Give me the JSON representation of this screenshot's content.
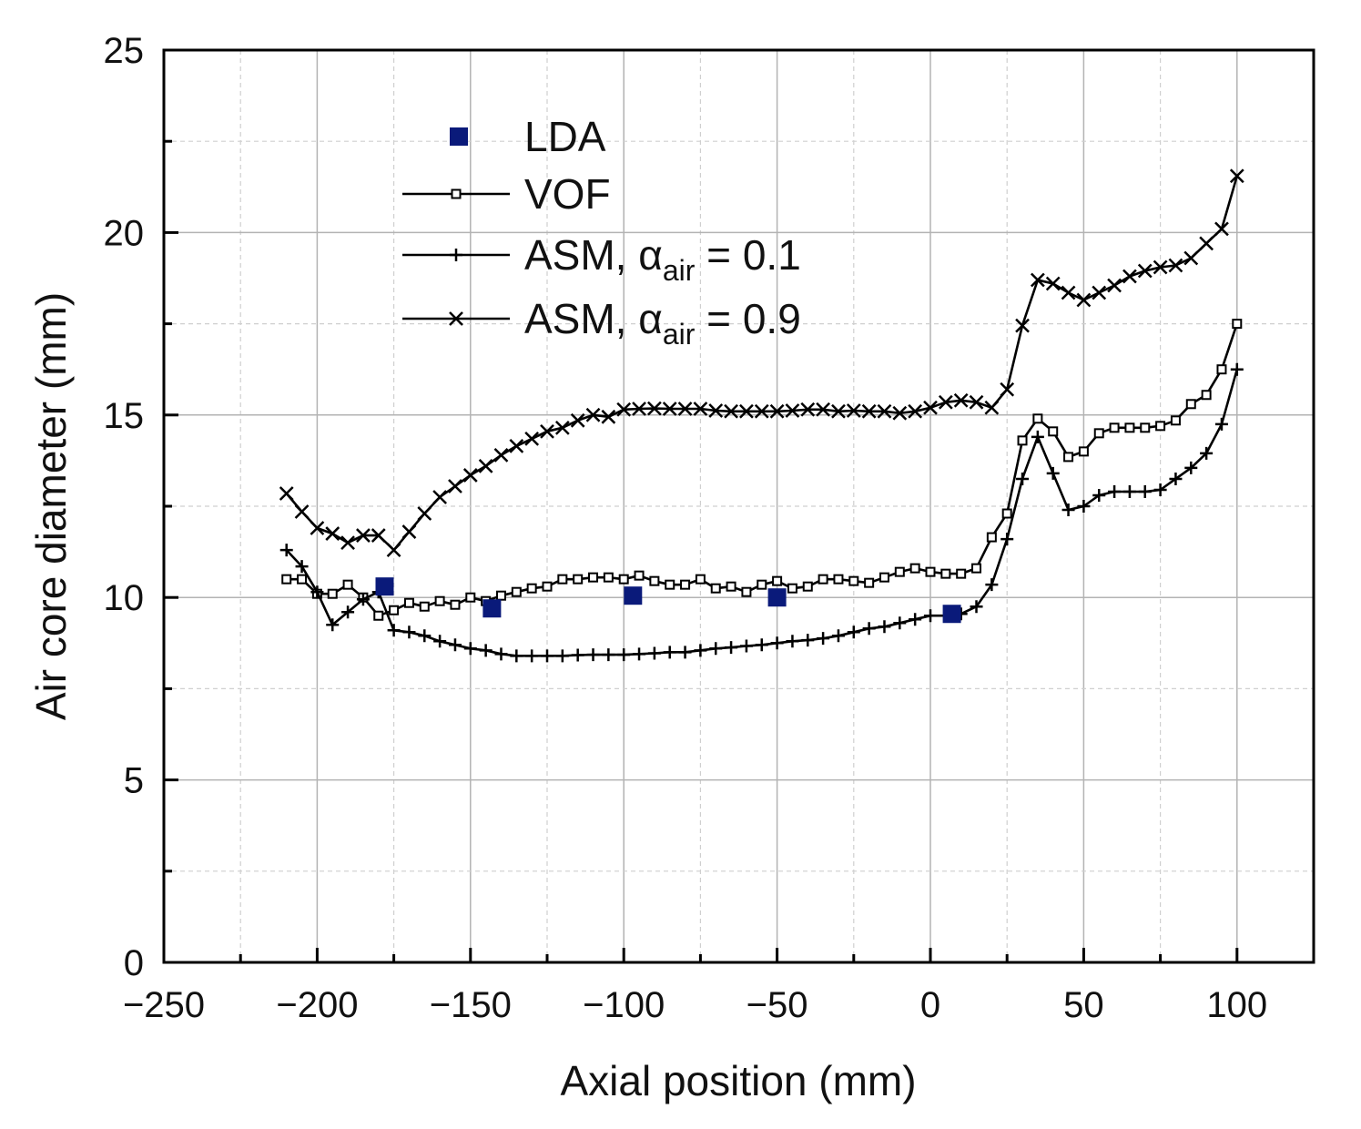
{
  "chart_data": {
    "type": "line",
    "xlabel": "Axial position (mm)",
    "ylabel": "Air core diameter (mm)",
    "xlim": [
      -250,
      125
    ],
    "ylim": [
      0,
      25
    ],
    "x_ticks": [
      -250,
      -200,
      -150,
      -100,
      -50,
      0,
      50,
      100
    ],
    "x_tick_labels": [
      "−250",
      "−200",
      "−150",
      "−100",
      "−50",
      "0",
      "50",
      "100"
    ],
    "y_ticks": [
      0,
      5,
      10,
      15,
      20,
      25
    ],
    "y_tick_labels": [
      "0",
      "5",
      "10",
      "15",
      "20",
      "25"
    ],
    "grid": true,
    "legend_position": "top-left",
    "colors": {
      "lda": "#0a1a7a",
      "lines": "#000000",
      "grid": "#bdbdbd"
    },
    "series": [
      {
        "name": "LDA",
        "marker": "filled-square",
        "line": false,
        "x": [
          -178,
          -143,
          -97,
          -50,
          7
        ],
        "y": [
          10.3,
          9.7,
          10.05,
          10.0,
          9.55
        ]
      },
      {
        "name": "VOF",
        "marker": "open-square",
        "line": true,
        "x": [
          -210,
          -205,
          -200,
          -195,
          -190,
          -185,
          -180,
          -175,
          -170,
          -165,
          -160,
          -155,
          -150,
          -145,
          -140,
          -135,
          -130,
          -125,
          -120,
          -115,
          -110,
          -105,
          -100,
          -95,
          -90,
          -85,
          -80,
          -75,
          -70,
          -65,
          -60,
          -55,
          -50,
          -45,
          -40,
          -35,
          -30,
          -25,
          -20,
          -15,
          -10,
          -5,
          0,
          5,
          10,
          15,
          20,
          25,
          30,
          35,
          40,
          45,
          50,
          55,
          60,
          65,
          70,
          75,
          80,
          85,
          90,
          95,
          100
        ],
        "y": [
          10.5,
          10.5,
          10.1,
          10.1,
          10.35,
          10.0,
          9.5,
          9.65,
          9.85,
          9.75,
          9.9,
          9.8,
          10.0,
          9.9,
          10.05,
          10.15,
          10.25,
          10.3,
          10.5,
          10.5,
          10.55,
          10.55,
          10.5,
          10.6,
          10.45,
          10.35,
          10.35,
          10.5,
          10.25,
          10.3,
          10.15,
          10.35,
          10.45,
          10.25,
          10.3,
          10.5,
          10.5,
          10.45,
          10.4,
          10.55,
          10.7,
          10.8,
          10.7,
          10.65,
          10.65,
          10.8,
          11.65,
          12.3,
          14.3,
          14.9,
          14.55,
          13.85,
          14.0,
          14.5,
          14.65,
          14.65,
          14.65,
          14.7,
          14.85,
          15.3,
          15.55,
          16.25,
          17.5
        ]
      },
      {
        "name": "ASM, αair = 0.1",
        "marker": "plus",
        "line": true,
        "x": [
          -210,
          -205,
          -200,
          -195,
          -190,
          -185,
          -180,
          -175,
          -170,
          -165,
          -160,
          -155,
          -150,
          -145,
          -140,
          -135,
          -130,
          -125,
          -120,
          -115,
          -110,
          -105,
          -100,
          -95,
          -90,
          -85,
          -80,
          -75,
          -70,
          -65,
          -60,
          -55,
          -50,
          -45,
          -40,
          -35,
          -30,
          -25,
          -20,
          -15,
          -10,
          -5,
          0,
          5,
          10,
          15,
          20,
          25,
          30,
          35,
          40,
          45,
          50,
          55,
          60,
          65,
          70,
          75,
          80,
          85,
          90,
          95,
          100
        ],
        "y": [
          11.3,
          10.85,
          10.15,
          9.25,
          9.6,
          9.95,
          10.15,
          9.1,
          9.05,
          8.95,
          8.8,
          8.7,
          8.6,
          8.55,
          8.45,
          8.4,
          8.4,
          8.4,
          8.4,
          8.42,
          8.43,
          8.43,
          8.43,
          8.45,
          8.47,
          8.5,
          8.5,
          8.55,
          8.6,
          8.63,
          8.67,
          8.7,
          8.75,
          8.8,
          8.83,
          8.88,
          8.95,
          9.05,
          9.15,
          9.2,
          9.3,
          9.4,
          9.5,
          9.5,
          9.55,
          9.75,
          10.35,
          11.6,
          13.25,
          14.4,
          13.4,
          12.4,
          12.5,
          12.8,
          12.9,
          12.9,
          12.9,
          12.95,
          13.25,
          13.55,
          13.95,
          14.75,
          16.25
        ]
      },
      {
        "name": "ASM, αair = 0.9",
        "marker": "cross",
        "line": true,
        "x": [
          -210,
          -205,
          -200,
          -195,
          -190,
          -185,
          -180,
          -175,
          -170,
          -165,
          -160,
          -155,
          -150,
          -145,
          -140,
          -135,
          -130,
          -125,
          -120,
          -115,
          -110,
          -105,
          -100,
          -95,
          -90,
          -85,
          -80,
          -75,
          -70,
          -65,
          -60,
          -55,
          -50,
          -45,
          -40,
          -35,
          -30,
          -25,
          -20,
          -15,
          -10,
          -5,
          0,
          5,
          10,
          15,
          20,
          25,
          30,
          35,
          40,
          45,
          50,
          55,
          60,
          65,
          70,
          75,
          80,
          85,
          90,
          95,
          100
        ],
        "y": [
          12.85,
          12.35,
          11.9,
          11.75,
          11.5,
          11.7,
          11.7,
          11.3,
          11.8,
          12.3,
          12.75,
          13.05,
          13.35,
          13.6,
          13.9,
          14.15,
          14.35,
          14.55,
          14.65,
          14.85,
          15.0,
          14.95,
          15.15,
          15.17,
          15.18,
          15.17,
          15.17,
          15.17,
          15.12,
          15.1,
          15.1,
          15.1,
          15.1,
          15.12,
          15.15,
          15.15,
          15.1,
          15.12,
          15.1,
          15.1,
          15.05,
          15.1,
          15.2,
          15.35,
          15.4,
          15.35,
          15.2,
          15.7,
          17.45,
          18.7,
          18.6,
          18.35,
          18.15,
          18.35,
          18.55,
          18.8,
          18.95,
          19.05,
          19.1,
          19.3,
          19.7,
          20.1,
          21.55
        ]
      }
    ]
  },
  "legend": [
    {
      "main": "LDA",
      "sub": "",
      "tail": ""
    },
    {
      "main": "VOF",
      "sub": "",
      "tail": ""
    },
    {
      "main": "ASM, α",
      "sub": "air",
      "tail": " = 0.1"
    },
    {
      "main": "ASM, α",
      "sub": "air",
      "tail": " = 0.9"
    }
  ]
}
